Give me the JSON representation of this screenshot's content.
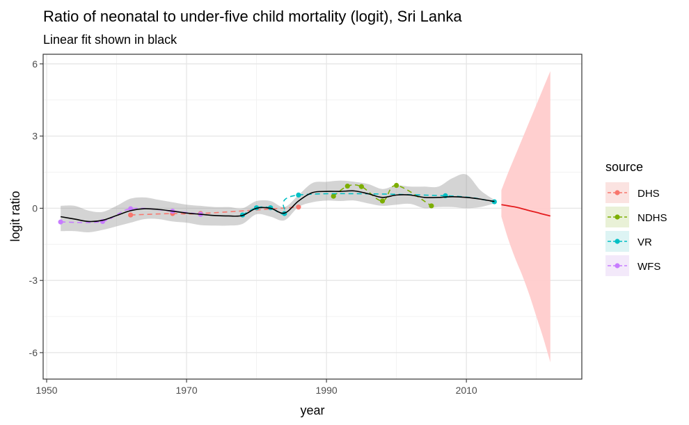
{
  "chart_data": {
    "type": "line",
    "title": "Ratio of neonatal to under-five child mortality (logit), Sri Lanka",
    "subtitle": "Linear fit shown in black",
    "xlabel": "year",
    "ylabel": "logit ratio",
    "xlim": [
      1949.5,
      2026.5
    ],
    "ylim": [
      -7.1,
      6.4
    ],
    "x_ticks": [
      1950,
      1970,
      1990,
      2010
    ],
    "x_tick_labels": [
      "1950",
      "1970",
      "1990",
      "2010"
    ],
    "y_ticks": [
      -6,
      -3,
      0,
      3,
      6
    ],
    "y_tick_labels": [
      "-6",
      "-3",
      "0",
      "3",
      "6"
    ],
    "grid": true,
    "legend": {
      "title": "source",
      "position": "right",
      "entries": [
        {
          "label": "DHS",
          "color": "#F8766D",
          "fill": "#FBE3E1"
        },
        {
          "label": "NDHS",
          "color": "#7CAE00",
          "fill": "#E9F1D7"
        },
        {
          "label": "VR",
          "color": "#00BFC4",
          "fill": "#DDF4F4"
        },
        {
          "label": "WFS",
          "color": "#C77CFF",
          "fill": "#F3E9FA"
        }
      ]
    },
    "series": [
      {
        "name": "DHS",
        "color": "#F8766D",
        "style": "dashed",
        "x": [
          1962,
          1968,
          1972,
          1986
        ],
        "y": [
          -0.28,
          -0.22,
          -0.22,
          0.05
        ]
      },
      {
        "name": "NDHS",
        "color": "#7CAE00",
        "style": "dashed",
        "x": [
          1991,
          1993,
          1995,
          1998,
          2000,
          2005
        ],
        "y": [
          0.5,
          0.92,
          0.9,
          0.3,
          0.95,
          0.1
        ]
      },
      {
        "name": "VR",
        "color": "#00BFC4",
        "style": "dashed",
        "x": [
          1978,
          1980,
          1982,
          1984,
          1986,
          2007,
          2014
        ],
        "y": [
          -0.28,
          0.02,
          0.02,
          -0.22,
          0.55,
          0.52,
          0.27
        ]
      },
      {
        "name": "WFS",
        "color": "#C77CFF",
        "style": "dashed",
        "x": [
          1952,
          1958,
          1962,
          1968,
          1972
        ],
        "y": [
          -0.57,
          -0.55,
          -0.02,
          -0.12,
          -0.25
        ]
      }
    ],
    "fit": {
      "color": "#000000",
      "x": [
        1952,
        1954,
        1956,
        1958,
        1960,
        1962,
        1964,
        1966,
        1968,
        1970,
        1972,
        1974,
        1976,
        1978,
        1980,
        1982,
        1984,
        1986,
        1988,
        1990,
        1992,
        1994,
        1996,
        1998,
        2000,
        2002,
        2004,
        2006,
        2008,
        2010,
        2012,
        2014
      ],
      "y": [
        -0.35,
        -0.45,
        -0.55,
        -0.5,
        -0.3,
        -0.1,
        -0.02,
        -0.05,
        -0.12,
        -0.2,
        -0.25,
        -0.3,
        -0.32,
        -0.3,
        0.0,
        0.0,
        -0.2,
        0.3,
        0.65,
        0.7,
        0.7,
        0.72,
        0.6,
        0.45,
        0.55,
        0.55,
        0.45,
        0.45,
        0.48,
        0.45,
        0.38,
        0.28
      ],
      "ci_lower": [
        -0.95,
        -0.95,
        -1.0,
        -0.9,
        -0.75,
        -0.6,
        -0.45,
        -0.45,
        -0.55,
        -0.6,
        -0.7,
        -0.72,
        -0.72,
        -0.65,
        -0.25,
        -0.35,
        -0.5,
        0.05,
        0.25,
        0.32,
        0.3,
        0.32,
        0.2,
        0.1,
        0.15,
        0.18,
        0.0,
        0.05,
        0.05,
        0.0,
        0.05,
        0.2
      ],
      "ci_upper": [
        0.1,
        0.1,
        -0.1,
        -0.15,
        0.1,
        0.4,
        0.45,
        0.35,
        0.25,
        0.15,
        0.1,
        0.05,
        0.05,
        0.0,
        0.3,
        0.3,
        0.05,
        0.55,
        1.05,
        1.1,
        1.15,
        1.1,
        1.0,
        0.8,
        0.95,
        0.9,
        0.9,
        0.9,
        1.25,
        1.4,
        0.75,
        0.35
      ]
    },
    "forecast": {
      "color": "#E41A1C",
      "band_color": "#FFCCCC",
      "x": [
        2015,
        2016,
        2017,
        2018,
        2019,
        2020,
        2021,
        2022
      ],
      "y": [
        0.15,
        0.1,
        0.05,
        -0.02,
        -0.1,
        -0.17,
        -0.25,
        -0.32
      ],
      "ci_lower": [
        -0.35,
        -1.3,
        -2.1,
        -2.8,
        -3.6,
        -4.5,
        -5.4,
        -6.4
      ],
      "ci_upper": [
        0.75,
        1.5,
        2.2,
        2.9,
        3.6,
        4.3,
        5.0,
        5.7
      ]
    }
  }
}
